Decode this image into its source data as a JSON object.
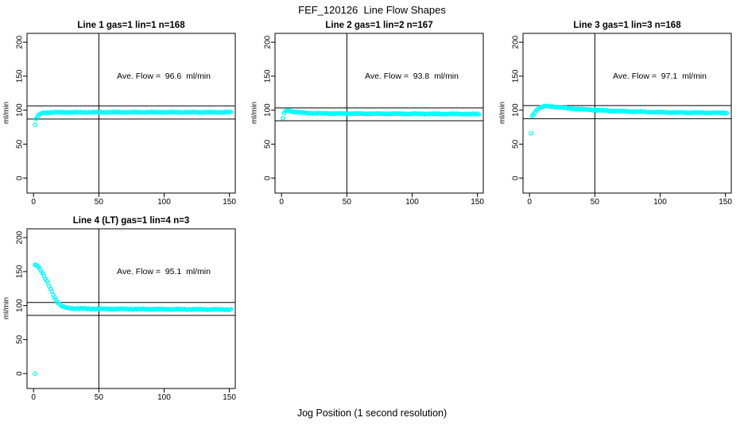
{
  "main_title": "FEF_120126  Line Flow Shapes",
  "x_axis_label": "Jog Position (1 second resolution)",
  "y_axis_label": "ml/min",
  "colors": {
    "marker": "#00FFFF",
    "axis": "#000000",
    "background": "#FFFFFF"
  },
  "chart_data": [
    {
      "type": "scatter",
      "title": "Line 1 gas=1 lin=1 n=168",
      "annotation": "Ave. Flow =  96.6  ml/min",
      "ave_flow_ml_min": 96.6,
      "gas": 1,
      "lin": 1,
      "n": 168,
      "x_ticks": [
        0,
        50,
        100,
        150
      ],
      "y_ticks": [
        0,
        50,
        100,
        150,
        200
      ],
      "xlim": [
        0,
        155
      ],
      "ylim": [
        0,
        200
      ],
      "ref_hlines": [
        106.3,
        86.9
      ],
      "ref_vline": 50,
      "marker": "open-circle",
      "anchors": [
        [
          1,
          78
        ],
        [
          2,
          87.5
        ],
        [
          3,
          90.5
        ],
        [
          4,
          92.5
        ],
        [
          5,
          94
        ],
        [
          6,
          95.2
        ],
        [
          7,
          95.8
        ],
        [
          8,
          96.2
        ],
        [
          10,
          96.5
        ],
        [
          15,
          96.7
        ],
        [
          20,
          96.8
        ],
        [
          50,
          96.9
        ],
        [
          100,
          97
        ],
        [
          151,
          96.9
        ]
      ],
      "extra_points": []
    },
    {
      "type": "scatter",
      "title": "Line 2 gas=1 lin=2 n=167",
      "annotation": "Ave. Flow =  93.8  ml/min",
      "ave_flow_ml_min": 93.8,
      "gas": 1,
      "lin": 2,
      "n": 167,
      "x_ticks": [
        0,
        50,
        100,
        150
      ],
      "y_ticks": [
        0,
        50,
        100,
        150,
        200
      ],
      "xlim": [
        0,
        155
      ],
      "ylim": [
        0,
        200
      ],
      "ref_hlines": [
        103.2,
        84.4
      ],
      "ref_vline": 50,
      "marker": "open-circle",
      "anchors": [
        [
          1,
          88
        ],
        [
          2,
          95.5
        ],
        [
          3,
          98
        ],
        [
          4,
          99.3
        ],
        [
          5,
          99.5
        ],
        [
          6,
          99.2
        ],
        [
          8,
          98.2
        ],
        [
          10,
          97.4
        ],
        [
          15,
          96.4
        ],
        [
          20,
          95.8
        ],
        [
          30,
          95.2
        ],
        [
          50,
          94.9
        ],
        [
          75,
          94.7
        ],
        [
          100,
          94.6
        ],
        [
          125,
          94.4
        ],
        [
          151,
          94.2
        ]
      ],
      "extra_points": []
    },
    {
      "type": "scatter",
      "title": "Line 3 gas=1 lin=3 n=168",
      "annotation": "Ave. Flow =  97.1  ml/min",
      "ave_flow_ml_min": 97.1,
      "gas": 1,
      "lin": 3,
      "n": 168,
      "x_ticks": [
        0,
        50,
        100,
        150
      ],
      "y_ticks": [
        0,
        50,
        100,
        150,
        200
      ],
      "xlim": [
        0,
        155
      ],
      "ylim": [
        0,
        200
      ],
      "ref_hlines": [
        106.8,
        87.4
      ],
      "ref_vline": 50,
      "marker": "open-circle",
      "anchors": [
        [
          1,
          66
        ],
        [
          2,
          91
        ],
        [
          3,
          94
        ],
        [
          4,
          97
        ],
        [
          5,
          99.5
        ],
        [
          6,
          101.5
        ],
        [
          8,
          103.5
        ],
        [
          10,
          105
        ],
        [
          13,
          105.8
        ],
        [
          16,
          105.5
        ],
        [
          20,
          104.8
        ],
        [
          25,
          103.8
        ],
        [
          30,
          102.8
        ],
        [
          40,
          101.3
        ],
        [
          50,
          100.2
        ],
        [
          60,
          99.2
        ],
        [
          75,
          98.2
        ],
        [
          90,
          97.4
        ],
        [
          105,
          96.8
        ],
        [
          120,
          96.4
        ],
        [
          135,
          96.2
        ],
        [
          151,
          96
        ]
      ],
      "extra_points": []
    },
    {
      "type": "scatter",
      "title": "Line 4 (LT) gas=1 lin=4 n=3",
      "annotation": "Ave. Flow =  95.1  ml/min",
      "ave_flow_ml_min": 95.1,
      "gas": 1,
      "lin": 4,
      "n": 3,
      "x_ticks": [
        0,
        50,
        100,
        150
      ],
      "y_ticks": [
        0,
        50,
        100,
        150,
        200
      ],
      "xlim": [
        0,
        155
      ],
      "ylim": [
        0,
        200
      ],
      "ref_hlines": [
        104.6,
        85.6
      ],
      "ref_vline": 50,
      "marker": "open-circle",
      "anchors": [
        [
          1,
          160
        ],
        [
          2,
          160
        ],
        [
          3,
          158.5
        ],
        [
          4,
          156.5
        ],
        [
          5,
          153.5
        ],
        [
          6,
          150
        ],
        [
          7,
          146.5
        ],
        [
          8,
          143
        ],
        [
          9,
          139.5
        ],
        [
          10,
          136
        ],
        [
          11,
          132.5
        ],
        [
          12,
          128.5
        ],
        [
          13,
          124.5
        ],
        [
          14,
          120.5
        ],
        [
          15,
          116.5
        ],
        [
          16,
          112.5
        ],
        [
          17,
          109
        ],
        [
          18,
          106
        ],
        [
          19,
          103.5
        ],
        [
          20,
          101.5
        ],
        [
          21,
          100
        ],
        [
          22,
          98.8
        ],
        [
          23,
          98
        ],
        [
          24,
          97.4
        ],
        [
          25,
          97
        ],
        [
          27,
          96.4
        ],
        [
          30,
          95.9
        ],
        [
          35,
          95.6
        ],
        [
          40,
          95.4
        ],
        [
          50,
          95.2
        ],
        [
          75,
          94.9
        ],
        [
          100,
          94.7
        ],
        [
          125,
          94.5
        ],
        [
          151,
          94.2
        ]
      ],
      "extra_points": [
        [
          1,
          0
        ]
      ]
    }
  ]
}
